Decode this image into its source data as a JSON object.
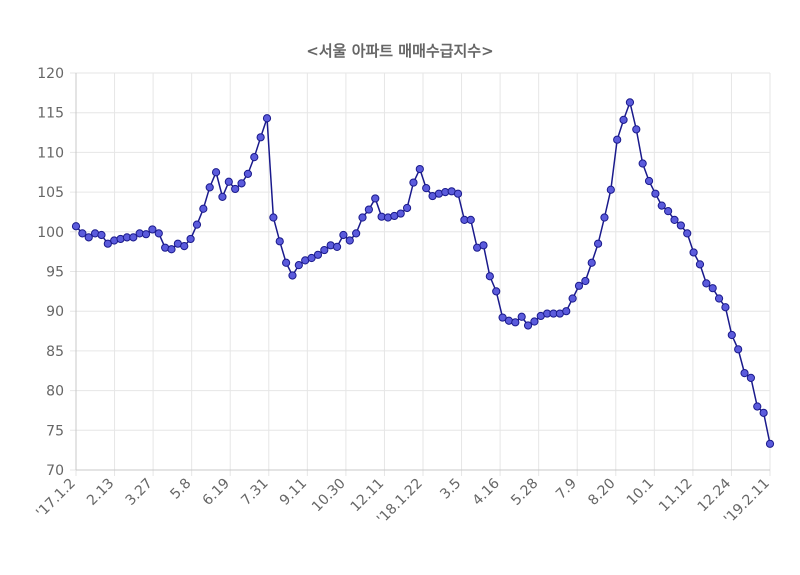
{
  "chart_data": {
    "type": "line",
    "title": "<서울 아파트 매매수급지수>",
    "xlabel": "",
    "ylabel": "",
    "ylim": [
      70,
      120
    ],
    "yticks": [
      70,
      75,
      80,
      85,
      90,
      95,
      100,
      105,
      110,
      115,
      120
    ],
    "x_tick_labels": [
      "'17.1.2",
      "2.13",
      "3.27",
      "5.8",
      "6.19",
      "7.31",
      "9.11",
      "10.30",
      "12.11",
      "'18.1.22",
      "3.5",
      "4.16",
      "5.28",
      "7.9",
      "8.20",
      "10.1",
      "11.12",
      "12.24",
      "'19.2.11"
    ],
    "grid": true,
    "line_color": "#1a1a8c",
    "point_fill": "#5b5bdc",
    "series": [
      {
        "values": [
          100.7,
          99.8,
          99.3,
          99.8,
          99.6,
          98.5,
          98.9,
          99.1,
          99.3,
          99.3,
          99.8,
          99.7,
          100.3,
          99.8,
          98.0,
          97.8,
          98.5,
          98.2,
          99.1,
          100.9,
          102.9,
          105.6,
          107.5,
          104.4,
          106.3,
          105.4,
          106.1,
          107.3,
          109.4,
          111.9,
          114.3,
          101.8,
          98.8,
          96.1,
          94.5,
          95.8,
          96.4,
          96.7,
          97.1,
          97.7,
          98.3,
          98.1,
          99.6,
          98.9,
          99.8,
          101.8,
          102.8,
          104.2,
          101.9,
          101.8,
          102.0,
          102.3,
          103.0,
          106.2,
          107.9,
          105.5,
          104.5,
          104.8,
          105.0,
          105.1,
          104.8,
          101.5,
          101.5,
          98.0,
          98.3,
          94.4,
          92.5,
          89.2,
          88.8,
          88.6,
          89.3,
          88.2,
          88.7,
          89.4,
          89.7,
          89.7,
          89.7,
          90.0,
          91.6,
          93.2,
          93.8,
          96.1,
          98.5,
          101.8,
          105.3,
          111.6,
          114.1,
          116.3,
          112.9,
          108.6,
          106.4,
          104.8,
          103.3,
          102.6,
          101.5,
          100.8,
          99.8,
          97.4,
          95.9,
          93.5,
          92.9,
          91.6,
          90.5,
          87.0,
          85.2,
          82.2,
          81.6,
          78.0,
          77.2,
          73.3
        ]
      }
    ]
  }
}
